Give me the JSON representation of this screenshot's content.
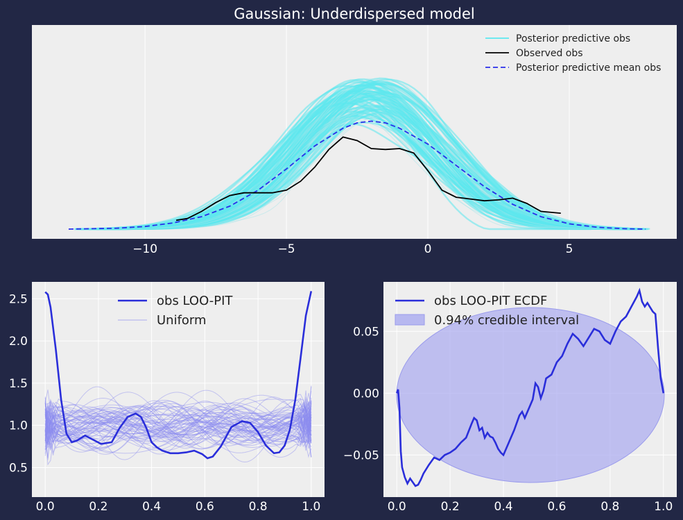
{
  "colors": {
    "background": "#222745",
    "panel": "#eeeeee",
    "grid": "#ffffff",
    "cyan": "#5ce8ef",
    "cyan_light": "#a8e6ea",
    "observed": "#000000",
    "mean": "#2a2eea",
    "loo": "#2a2eda",
    "uniform": "#8c8cf0",
    "band": "#a9aaf0"
  },
  "chart_data": [
    {
      "type": "line",
      "title": "Gaussian: Underdispersed model",
      "xlim": [
        -14,
        8.8
      ],
      "ylim": [
        0,
        1
      ],
      "x_ticks": [
        -10,
        -5,
        0,
        5
      ],
      "x_tick_labels": [
        "−10",
        "−5",
        "0",
        "5"
      ],
      "grid": true,
      "legend_position": "top-right",
      "legend": [
        "Posterior predictive obs",
        "Observed obs",
        "Posterior predictive mean obs"
      ],
      "series": [
        {
          "name": "Posterior predictive mean obs",
          "style": "dashed",
          "x": [
            -12.7,
            -11,
            -10,
            -9,
            -8,
            -7,
            -6,
            -5,
            -4,
            -3,
            -2.5,
            -2,
            -1.5,
            -1,
            0,
            1,
            2,
            3,
            4,
            5,
            6,
            7,
            7.7
          ],
          "y": [
            0.0,
            0.005,
            0.015,
            0.035,
            0.07,
            0.13,
            0.22,
            0.34,
            0.47,
            0.57,
            0.6,
            0.61,
            0.6,
            0.57,
            0.48,
            0.36,
            0.24,
            0.14,
            0.07,
            0.03,
            0.01,
            0.002,
            0.0
          ]
        },
        {
          "name": "Observed obs",
          "style": "solid",
          "x": [
            -8.9,
            -8.5,
            -8,
            -7.5,
            -7,
            -6.5,
            -6,
            -5.5,
            -5,
            -4.5,
            -4,
            -3.5,
            -3,
            -2.5,
            -2,
            -1.5,
            -1,
            -0.5,
            0,
            0.5,
            1,
            1.5,
            2,
            2.5,
            3,
            3.5,
            4,
            4.7
          ],
          "y": [
            0.05,
            0.06,
            0.1,
            0.15,
            0.19,
            0.205,
            0.205,
            0.205,
            0.22,
            0.27,
            0.35,
            0.45,
            0.52,
            0.5,
            0.455,
            0.45,
            0.455,
            0.43,
            0.33,
            0.22,
            0.18,
            0.17,
            0.16,
            0.165,
            0.175,
            0.145,
            0.1,
            0.09
          ]
        }
      ]
    },
    {
      "type": "line",
      "xlim": [
        -0.05,
        1.05
      ],
      "ylim": [
        0.15,
        2.7
      ],
      "x_ticks": [
        0.0,
        0.2,
        0.4,
        0.6,
        0.8,
        1.0
      ],
      "x_tick_labels": [
        "0.0",
        "0.2",
        "0.4",
        "0.6",
        "0.8",
        "1.0"
      ],
      "y_ticks": [
        0.5,
        1.0,
        1.5,
        2.0,
        2.5
      ],
      "y_tick_labels": [
        "0.5",
        "1.0",
        "1.5",
        "2.0",
        "2.5"
      ],
      "grid": true,
      "legend_position": "top-center",
      "legend": [
        "obs LOO-PIT",
        "Uniform"
      ],
      "series": [
        {
          "name": "obs LOO-PIT",
          "x": [
            0.0,
            0.01,
            0.02,
            0.04,
            0.06,
            0.08,
            0.1,
            0.12,
            0.15,
            0.18,
            0.21,
            0.25,
            0.28,
            0.31,
            0.34,
            0.36,
            0.38,
            0.4,
            0.42,
            0.44,
            0.47,
            0.5,
            0.53,
            0.56,
            0.59,
            0.61,
            0.63,
            0.66,
            0.7,
            0.74,
            0.77,
            0.8,
            0.83,
            0.86,
            0.88,
            0.9,
            0.92,
            0.94,
            0.96,
            0.98,
            1.0
          ],
          "y": [
            2.58,
            2.55,
            2.4,
            1.9,
            1.3,
            0.9,
            0.8,
            0.82,
            0.88,
            0.83,
            0.78,
            0.8,
            0.97,
            1.1,
            1.14,
            1.1,
            0.97,
            0.8,
            0.74,
            0.7,
            0.67,
            0.67,
            0.68,
            0.7,
            0.66,
            0.61,
            0.63,
            0.75,
            0.98,
            1.05,
            1.03,
            0.92,
            0.76,
            0.67,
            0.68,
            0.76,
            0.95,
            1.3,
            1.8,
            2.3,
            2.59
          ]
        }
      ]
    },
    {
      "type": "line",
      "xlim": [
        -0.05,
        1.05
      ],
      "ylim": [
        -0.084,
        0.09
      ],
      "x_ticks": [
        0.0,
        0.2,
        0.4,
        0.6,
        0.8,
        1.0
      ],
      "x_tick_labels": [
        "0.0",
        "0.2",
        "0.4",
        "0.6",
        "0.8",
        "1.0"
      ],
      "y_ticks": [
        -0.05,
        0.0,
        0.05
      ],
      "y_tick_labels": [
        "−0.05",
        "0.00",
        "0.05"
      ],
      "grid": true,
      "legend_position": "top-left",
      "legend": [
        "obs LOO-PIT ECDF",
        "0.94% credible interval"
      ],
      "series": [
        {
          "name": "obs LOO-PIT ECDF",
          "x": [
            0.0,
            0.005,
            0.01,
            0.015,
            0.02,
            0.03,
            0.04,
            0.05,
            0.06,
            0.07,
            0.08,
            0.09,
            0.1,
            0.12,
            0.14,
            0.16,
            0.18,
            0.2,
            0.22,
            0.24,
            0.26,
            0.28,
            0.29,
            0.3,
            0.31,
            0.32,
            0.33,
            0.34,
            0.35,
            0.36,
            0.37,
            0.38,
            0.39,
            0.4,
            0.42,
            0.44,
            0.46,
            0.47,
            0.48,
            0.5,
            0.51,
            0.52,
            0.53,
            0.54,
            0.55,
            0.56,
            0.58,
            0.6,
            0.62,
            0.64,
            0.66,
            0.68,
            0.7,
            0.72,
            0.74,
            0.76,
            0.78,
            0.8,
            0.82,
            0.84,
            0.86,
            0.88,
            0.9,
            0.91,
            0.92,
            0.93,
            0.94,
            0.96,
            0.97,
            0.98,
            0.99,
            1.0
          ],
          "y": [
            0.0,
            0.003,
            -0.012,
            -0.047,
            -0.06,
            -0.068,
            -0.073,
            -0.069,
            -0.072,
            -0.075,
            -0.074,
            -0.07,
            -0.065,
            -0.058,
            -0.052,
            -0.054,
            -0.05,
            -0.048,
            -0.045,
            -0.04,
            -0.036,
            -0.025,
            -0.02,
            -0.022,
            -0.03,
            -0.028,
            -0.036,
            -0.032,
            -0.035,
            -0.036,
            -0.04,
            -0.045,
            -0.048,
            -0.05,
            -0.04,
            -0.03,
            -0.018,
            -0.015,
            -0.02,
            -0.01,
            -0.005,
            0.008,
            0.005,
            -0.004,
            0.002,
            0.012,
            0.015,
            0.025,
            0.03,
            0.04,
            0.048,
            0.044,
            0.038,
            0.045,
            0.052,
            0.05,
            0.043,
            0.04,
            0.05,
            0.058,
            0.062,
            0.07,
            0.078,
            0.083,
            0.074,
            0.07,
            0.073,
            0.066,
            0.064,
            0.036,
            0.012,
            0.0
          ]
        }
      ]
    }
  ]
}
